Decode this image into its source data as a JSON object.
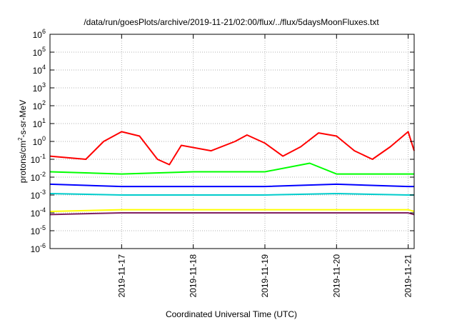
{
  "chart_data": {
    "type": "line",
    "title": "/data/run/goesPlots/archive/2019-11-21/02:00/flux/../flux/5daysMoonFluxes.txt",
    "xlabel": "Coordinated Universal Time (UTC)",
    "ylabel": "protons/cm²-s-sr-MeV",
    "yscale": "log",
    "ylim": [
      1e-06,
      1000000.0
    ],
    "xlim": [
      "2019-11-16T00:00",
      "2019-11-21T02:00"
    ],
    "x_ticks": [
      "2019-11-17",
      "2019-11-18",
      "2019-11-19",
      "2019-11-20",
      "2019-11-21"
    ],
    "y_ticks": [
      {
        "base": "10",
        "exp": "-6"
      },
      {
        "base": "10",
        "exp": "-5"
      },
      {
        "base": "10",
        "exp": "-4"
      },
      {
        "base": "10",
        "exp": "-3"
      },
      {
        "base": "10",
        "exp": "-2"
      },
      {
        "base": "10",
        "exp": "-1"
      },
      {
        "base": "10",
        "exp": "0"
      },
      {
        "base": "10",
        "exp": "1"
      },
      {
        "base": "10",
        "exp": "2"
      },
      {
        "base": "10",
        "exp": "3"
      },
      {
        "base": "10",
        "exp": "4"
      },
      {
        "base": "10",
        "exp": "5"
      },
      {
        "base": "10",
        "exp": "6"
      }
    ],
    "grid": true,
    "series": [
      {
        "color": "#ff0000",
        "x": [
          "2019-11-16T00:00",
          "2019-11-16T12:00",
          "2019-11-16T18:00",
          "2019-11-17T00:00",
          "2019-11-17T06:00",
          "2019-11-17T12:00",
          "2019-11-17T16:00",
          "2019-11-17T20:00",
          "2019-11-18T06:00",
          "2019-11-18T14:00",
          "2019-11-18T18:00",
          "2019-11-19T00:00",
          "2019-11-19T06:00",
          "2019-11-19T12:00",
          "2019-11-19T18:00",
          "2019-11-20T00:00",
          "2019-11-20T06:00",
          "2019-11-20T12:00",
          "2019-11-20T18:00",
          "2019-11-21T00:00",
          "2019-11-21T02:00"
        ],
        "values": [
          0.15,
          0.1,
          1.0,
          3.5,
          2.0,
          0.1,
          0.05,
          0.6,
          0.3,
          1.0,
          2.3,
          0.8,
          0.15,
          0.5,
          3.0,
          2.0,
          0.3,
          0.1,
          0.5,
          3.5,
          0.3
        ]
      },
      {
        "color": "#00ff00",
        "x": [
          "2019-11-16T00:00",
          "2019-11-17T00:00",
          "2019-11-18T00:00",
          "2019-11-19T00:00",
          "2019-11-19T15:00",
          "2019-11-20T00:00",
          "2019-11-21T00:00",
          "2019-11-21T02:00"
        ],
        "values": [
          0.02,
          0.015,
          0.02,
          0.02,
          0.06,
          0.015,
          0.015,
          0.015
        ]
      },
      {
        "color": "#00cccc",
        "x": [
          "2019-11-16T00:00",
          "2019-11-17T00:00",
          "2019-11-18T00:00",
          "2019-11-19T00:00",
          "2019-11-20T00:00",
          "2019-11-21T00:00",
          "2019-11-21T02:00"
        ],
        "values": [
          0.0012,
          0.001,
          0.001,
          0.001,
          0.0012,
          0.001,
          0.001
        ]
      },
      {
        "color": "#0000ff",
        "x": [
          "2019-11-16T00:00",
          "2019-11-17T00:00",
          "2019-11-18T00:00",
          "2019-11-19T00:00",
          "2019-11-20T00:00",
          "2019-11-21T00:00",
          "2019-11-21T02:00"
        ],
        "values": [
          0.004,
          0.003,
          0.003,
          0.003,
          0.004,
          0.003,
          0.003
        ]
      },
      {
        "color": "#ffff00",
        "x": [
          "2019-11-16T00:00",
          "2019-11-17T00:00",
          "2019-11-18T00:00",
          "2019-11-19T00:00",
          "2019-11-20T00:00",
          "2019-11-21T00:00",
          "2019-11-21T02:00"
        ],
        "values": [
          0.00012,
          0.00015,
          0.00015,
          0.00015,
          0.00015,
          0.00015,
          0.00012
        ]
      },
      {
        "color": "#802060",
        "x": [
          "2019-11-16T00:00",
          "2019-11-17T00:00",
          "2019-11-18T00:00",
          "2019-11-19T00:00",
          "2019-11-20T00:00",
          "2019-11-21T00:00",
          "2019-11-21T02:00"
        ],
        "values": [
          8e-05,
          0.0001,
          0.0001,
          0.0001,
          0.0001,
          0.0001,
          8e-05
        ]
      }
    ]
  }
}
